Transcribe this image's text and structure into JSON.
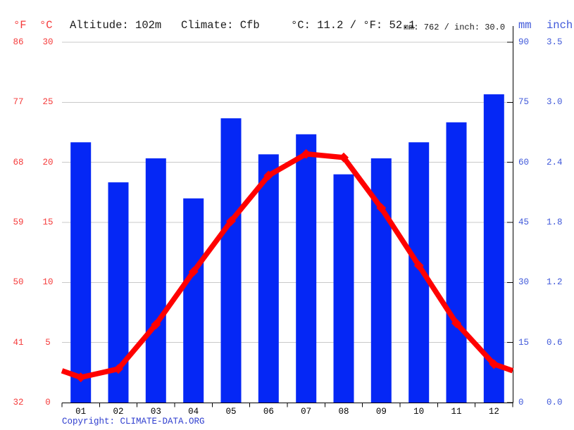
{
  "header": {
    "unit_f": "°F",
    "unit_c": "°C",
    "altitude": "Altitude: 102m",
    "climate": "Climate: Cfb",
    "temperature_summary": "°C: 11.2 / °F: 52.1",
    "precipitation_summary": "mm: 762 / inch: 30.0",
    "unit_mm": "mm",
    "unit_inch": "inch"
  },
  "footer": {
    "copyright_label": "Copyright:",
    "copyright_link": "CLIMATE-DATA.ORG"
  },
  "colors": {
    "bar_blue": "#0527f5",
    "line_red": "#ff0000",
    "red_text": "#f53b3b",
    "blue_text": "#4059da",
    "link_blue": "#2f3ecf",
    "grid_gray": "#c9c9c9",
    "axis_black": "#000000",
    "header_text": "#1a1a1a"
  },
  "chart_data": {
    "type": "bar",
    "categories": [
      "01",
      "02",
      "03",
      "04",
      "05",
      "06",
      "07",
      "08",
      "09",
      "10",
      "11",
      "12"
    ],
    "series": [
      {
        "name": "Precipitation",
        "type": "bar",
        "unit": "mm",
        "values": [
          65,
          55,
          61,
          51,
          71,
          62,
          67,
          57,
          61,
          65,
          70,
          77
        ]
      },
      {
        "name": "Temperature",
        "type": "line",
        "unit": "°C",
        "values": [
          2.1,
          2.8,
          6.5,
          10.9,
          15.1,
          18.9,
          20.7,
          20.4,
          16.2,
          11.4,
          6.6,
          3.2
        ]
      }
    ],
    "left_axis": {
      "units": [
        "°F",
        "°C"
      ],
      "ticks_f": [
        "86",
        "77",
        "68",
        "59",
        "50",
        "41",
        "32"
      ],
      "ticks_c": [
        "30",
        "25",
        "20",
        "15",
        "10",
        "5",
        "0"
      ],
      "range_c": [
        0,
        30
      ]
    },
    "right_axis": {
      "units": [
        "mm",
        "inch"
      ],
      "ticks_mm": [
        "90",
        "75",
        "60",
        "45",
        "30",
        "15",
        "0"
      ],
      "ticks_inch": [
        "3.5",
        "3.0",
        "2.4",
        "1.8",
        "1.2",
        "0.6",
        "0.0"
      ],
      "range_mm": [
        0,
        90
      ]
    },
    "grid": true,
    "legend": "none"
  }
}
